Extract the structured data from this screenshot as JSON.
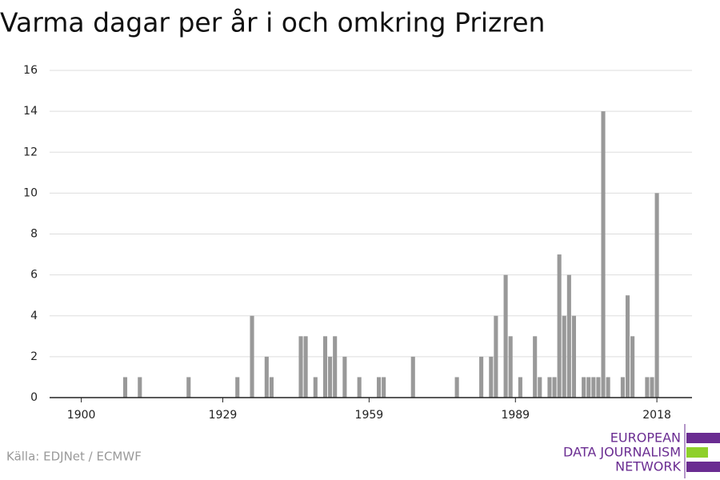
{
  "chart_data": {
    "type": "bar",
    "title": "Varma dagar per år i och omkring Prizren",
    "source": "Källa: EDJNet / ECMWF",
    "logo": [
      "EUROPEAN",
      "DATA JOURNALISM",
      "NETWORK"
    ],
    "x": [
      1909,
      1912,
      1922,
      1932,
      1935,
      1938,
      1939,
      1945,
      1946,
      1948,
      1950,
      1951,
      1952,
      1954,
      1957,
      1961,
      1962,
      1968,
      1977,
      1982,
      1984,
      1985,
      1987,
      1988,
      1990,
      1993,
      1994,
      1996,
      1997,
      1998,
      1999,
      2000,
      2001,
      2003,
      2004,
      2005,
      2006,
      2007,
      2008,
      2011,
      2012,
      2013,
      2016,
      2017,
      2018
    ],
    "values": [
      1,
      1,
      1,
      1,
      4,
      2,
      1,
      3,
      3,
      1,
      3,
      2,
      3,
      2,
      1,
      1,
      1,
      2,
      1,
      2,
      2,
      4,
      6,
      3,
      1,
      3,
      1,
      1,
      1,
      7,
      4,
      6,
      4,
      1,
      1,
      1,
      1,
      14,
      1,
      1,
      5,
      3,
      1,
      1,
      10
    ],
    "color": "#999999",
    "xlim": [
      1893.5,
      2025.2
    ],
    "xticks": [
      1900,
      1929,
      1959,
      1989,
      2018
    ],
    "ylim": [
      0,
      16
    ],
    "yticks": [
      0,
      2,
      4,
      6,
      8,
      10,
      12,
      14,
      16
    ],
    "grid": true
  }
}
